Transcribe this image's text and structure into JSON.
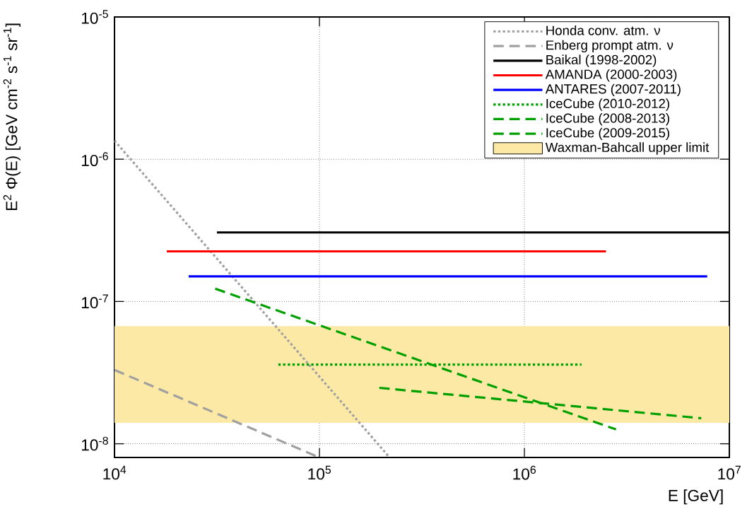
{
  "chart_data": {
    "type": "line",
    "xlabel": "E [GeV]",
    "ylabel": "E$^{2}$ Φ(E) [GeV cm$^{-2}$ s$^{-1}$ sr$^{-1}$]",
    "log": "xy",
    "grid": true,
    "legend": "top right",
    "xlim": [
      10000,
      10000000
    ],
    "ylim": [
      8e-09,
      1e-05
    ],
    "xticks": [
      {
        "value": 10000,
        "label": "10$^{4}$"
      },
      {
        "value": 100000,
        "label": "10$^{5}$"
      },
      {
        "value": 1000000,
        "label": "10$^{6}$"
      },
      {
        "value": 10000000,
        "label": "10$^{7}$"
      }
    ],
    "yticks": [
      {
        "value": 1e-08,
        "label": "10$^{-8}$"
      },
      {
        "value": 1e-07,
        "label": "10$^{-7}$"
      },
      {
        "value": 1e-06,
        "label": "10$^{-6}$"
      },
      {
        "value": 1e-05,
        "label": "10$^{-5}$"
      }
    ],
    "series": [
      {
        "name": "Honda conv. atm. ν",
        "color": "#a0a0a0",
        "line_style": "dotted",
        "x": [
          10000,
          220000
        ],
        "values": [
          1.35e-06,
          8e-09
        ]
      },
      {
        "name": "Enberg prompt atm. ν",
        "color": "#a0a0a0",
        "line_style": "dashed",
        "x": [
          10000,
          100000
        ],
        "values": [
          3.3e-08,
          8e-09
        ]
      },
      {
        "name": "Baikal (1998-2002)",
        "color": "#000000",
        "line_style": "solid",
        "x": [
          31600,
          10000000
        ],
        "values": [
          3.05e-07,
          3.05e-07
        ]
      },
      {
        "name": "AMANDA (2000-2003)",
        "color": "#ff0000",
        "line_style": "solid",
        "x": [
          18000,
          2500000
        ],
        "values": [
          2.25e-07,
          2.25e-07
        ]
      },
      {
        "name": "ANTARES (2007-2011)",
        "color": "#0000ff",
        "line_style": "solid",
        "x": [
          23000,
          7800000
        ],
        "values": [
          1.5e-07,
          1.5e-07
        ]
      },
      {
        "name": "IceCube (2010-2012)",
        "color": "#00a000",
        "line_style": "dotted",
        "x": [
          63000,
          1900000
        ],
        "values": [
          3.6e-08,
          3.6e-08
        ]
      },
      {
        "name": "IceCube (2008-2013)",
        "color": "#00a000",
        "line_style": "dashed",
        "x": [
          31000,
          2800000
        ],
        "values": [
          1.23e-07,
          1.26e-08
        ]
      },
      {
        "name": "IceCube (2009-2015)",
        "color": "#00a000",
        "line_style": "dashed",
        "x": [
          196000,
          7300000
        ],
        "values": [
          2.47e-08,
          1.51e-08
        ]
      }
    ],
    "bands": [
      {
        "axis": "y",
        "from": 1.4e-08,
        "to": 6.7e-08,
        "label": "Waxman-Bahcall upper limit",
        "color": "#fde9a6"
      }
    ]
  }
}
